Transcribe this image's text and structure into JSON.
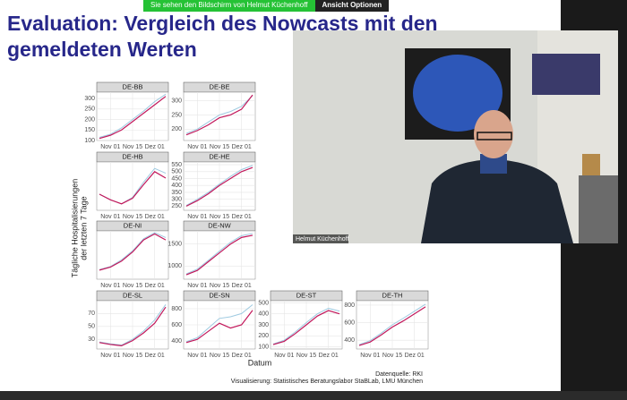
{
  "banner": {
    "text": "Sie sehen den Bildschirm von Helmut Küchenhoff",
    "options": "Ansicht Optionen"
  },
  "slide": {
    "title": "Evaluation: Vergleich des Nowcasts mit den gemeldeten Werten",
    "y_axis_label": [
      "Tägliche Hospitalisierungen",
      "der letzten 7 Tage"
    ],
    "x_axis_label": "Datum",
    "source": "Datenquelle: RKI",
    "credit": "Visualisierung: Statistisches Beratungslabor StaBLab, LMU München"
  },
  "webcam": {
    "name": "Helmut Küchenhoff"
  },
  "chart_data": [
    {
      "type": "line",
      "title": "DE-BB",
      "categories": [
        null,
        "Nov 01",
        null,
        "Nov 15",
        null,
        "Dez 01",
        null
      ],
      "ylim": [
        100,
        330
      ],
      "yticks": [
        100,
        150,
        200,
        250,
        300
      ],
      "series": [
        {
          "color": "#9ecae1",
          "values": [
            115,
            130,
            160,
            200,
            240,
            285,
            320
          ]
        },
        {
          "color": "#c2185b",
          "values": [
            110,
            125,
            150,
            190,
            230,
            270,
            310
          ]
        }
      ]
    },
    {
      "type": "line",
      "title": "DE-BE",
      "categories": [
        null,
        "Nov 01",
        null,
        "Nov 15",
        null,
        "Dez 01",
        null
      ],
      "ylim": [
        160,
        330
      ],
      "yticks": [
        200,
        250,
        300
      ],
      "series": [
        {
          "color": "#9ecae1",
          "values": [
            185,
            200,
            225,
            250,
            262,
            280,
            318
          ]
        },
        {
          "color": "#c2185b",
          "values": [
            180,
            195,
            215,
            240,
            250,
            270,
            320
          ]
        }
      ]
    },
    {
      "type": "line",
      "title": "DE-HB",
      "categories": [
        null,
        "Nov 01",
        null,
        "Nov 15",
        null,
        "Dez 01",
        null
      ],
      "ylim": [
        20,
        80
      ],
      "series": [
        {
          "color": "#9ecae1",
          "values": [
            40,
            33,
            28,
            36,
            55,
            72,
            66
          ]
        },
        {
          "color": "#c2185b",
          "values": [
            40,
            33,
            28,
            35,
            52,
            68,
            60
          ]
        }
      ]
    },
    {
      "type": "line",
      "title": "DE-HE",
      "categories": [
        null,
        "Nov 01",
        null,
        "Nov 15",
        null,
        "Dez 01",
        null
      ],
      "ylim": [
        220,
        570
      ],
      "yticks": [
        250,
        300,
        350,
        400,
        450,
        500,
        550
      ],
      "series": [
        {
          "color": "#9ecae1",
          "values": [
            255,
            300,
            350,
            410,
            465,
            515,
            545
          ]
        },
        {
          "color": "#c2185b",
          "values": [
            250,
            290,
            340,
            400,
            450,
            500,
            530
          ]
        }
      ]
    },
    {
      "type": "line",
      "title": "DE-NI",
      "categories": [
        null,
        "Nov 01",
        null,
        "Nov 15",
        null,
        "Dez 01",
        null
      ],
      "ylim": [
        100,
        900
      ],
      "series": [
        {
          "color": "#9ecae1",
          "values": [
            260,
            310,
            420,
            570,
            770,
            870,
            790
          ]
        },
        {
          "color": "#c2185b",
          "values": [
            250,
            300,
            400,
            550,
            750,
            850,
            750
          ]
        }
      ]
    },
    {
      "type": "line",
      "title": "DE-NW",
      "categories": [
        null,
        "Nov 01",
        null,
        "Nov 15",
        null,
        "Dez 01",
        null
      ],
      "ylim": [
        700,
        1800
      ],
      "yticks": [
        1000,
        1500
      ],
      "series": [
        {
          "color": "#9ecae1",
          "values": [
            820,
            930,
            1130,
            1340,
            1540,
            1690,
            1740
          ]
        },
        {
          "color": "#c2185b",
          "values": [
            800,
            900,
            1100,
            1300,
            1500,
            1650,
            1700
          ]
        }
      ]
    },
    {
      "type": "line",
      "title": "DE-SL",
      "categories": [
        null,
        "Nov 01",
        null,
        "Nov 15",
        null,
        "Dez 01",
        null
      ],
      "ylim": [
        15,
        90
      ],
      "yticks": [
        30,
        50,
        70
      ],
      "series": [
        {
          "color": "#9ecae1",
          "values": [
            26,
            23,
            21,
            30,
            43,
            60,
            84
          ]
        },
        {
          "color": "#c2185b",
          "values": [
            25,
            22,
            20,
            28,
            40,
            55,
            80
          ]
        }
      ]
    },
    {
      "type": "line",
      "title": "DE-SN",
      "categories": [
        null,
        "Nov 01",
        null,
        "Nov 15",
        null,
        "Dez 01",
        null
      ],
      "ylim": [
        300,
        900
      ],
      "yticks": [
        400,
        600,
        800
      ],
      "series": [
        {
          "color": "#9ecae1",
          "values": [
            390,
            440,
            560,
            680,
            700,
            740,
            850
          ]
        },
        {
          "color": "#c2185b",
          "values": [
            380,
            420,
            520,
            620,
            560,
            600,
            780
          ]
        }
      ]
    },
    {
      "type": "line",
      "title": "DE-ST",
      "categories": [
        null,
        "Nov 01",
        null,
        "Nov 15",
        null,
        "Dez 01",
        null
      ],
      "ylim": [
        80,
        520
      ],
      "yticks": [
        100,
        200,
        300,
        400,
        500
      ],
      "series": [
        {
          "color": "#9ecae1",
          "values": [
            125,
            160,
            235,
            320,
            400,
            450,
            425
          ]
        },
        {
          "color": "#c2185b",
          "values": [
            120,
            150,
            220,
            300,
            380,
            430,
            400
          ]
        }
      ]
    },
    {
      "type": "line",
      "title": "DE-TH",
      "categories": [
        null,
        "Nov 01",
        null,
        "Nov 15",
        null,
        "Dez 01",
        null
      ],
      "ylim": [
        300,
        850
      ],
      "yticks": [
        400,
        600,
        800
      ],
      "series": [
        {
          "color": "#9ecae1",
          "values": [
            350,
            395,
            480,
            575,
            650,
            730,
            810
          ]
        },
        {
          "color": "#c2185b",
          "values": [
            340,
            380,
            460,
            550,
            620,
            700,
            780
          ]
        }
      ]
    }
  ]
}
